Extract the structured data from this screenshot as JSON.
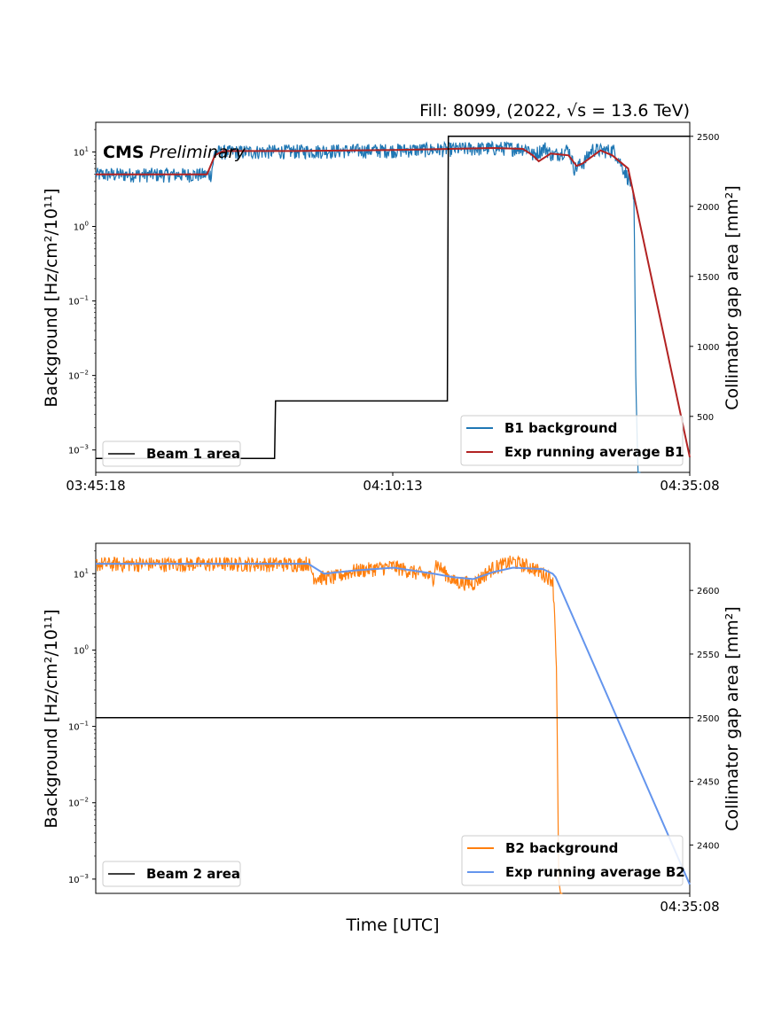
{
  "figure_title": "Fill: 8099, (2022, √s = 13.6 TeV)",
  "watermark": {
    "bold": "CMS",
    "italic": "Preliminary"
  },
  "colors": {
    "b1_background": "#1f77b4",
    "b1_avg": "#b22222",
    "b2_background": "#ff7f0e",
    "b2_avg": "#6495ed",
    "area": "#000000"
  },
  "chart_data": [
    {
      "type": "line",
      "panel": "top",
      "xlabel": "",
      "ylabel": "Background [Hz/cm²/10¹¹]",
      "ylabel_right": "Collimator gap area [mm²]",
      "y_scale": "log",
      "ylim": [
        0.0005,
        25
      ],
      "y_ticks": [
        {
          "v": 0.001,
          "m": "10",
          "e": "−3"
        },
        {
          "v": 0.01,
          "m": "10",
          "e": "−2"
        },
        {
          "v": 0.1,
          "m": "10",
          "e": "−1"
        },
        {
          "v": 1,
          "m": "10",
          "e": "0"
        },
        {
          "v": 10,
          "m": "10",
          "e": "1"
        }
      ],
      "y2lim": [
        100,
        2600
      ],
      "y2_ticks": [
        "500",
        "1000",
        "1500",
        "2000",
        "2500"
      ],
      "x_ticks": [
        "03:45:18",
        "04:10:13",
        "04:35:08"
      ],
      "xlim": [
        0,
        2990
      ],
      "series": [
        {
          "name": "B1 background",
          "kind": "noisy",
          "x": [
            0,
            580,
            600,
            1000,
            1500,
            2000,
            2180,
            2200,
            2260,
            2300,
            2380,
            2410,
            2460,
            2500,
            2540,
            2610,
            2690,
            2710,
            2718,
            2730,
            2742
          ],
          "y": [
            5,
            5,
            10,
            10.3,
            10.6,
            11.3,
            11.3,
            9,
            11.5,
            9,
            11,
            6,
            7.5,
            11,
            10.5,
            10.5,
            4,
            2,
            0.01,
            0.0004,
            0.0004
          ]
        },
        {
          "name": "Exp running average B1",
          "x": [
            0,
            560,
            600,
            640,
            1000,
            1500,
            2000,
            2150,
            2200,
            2230,
            2290,
            2380,
            2420,
            2450,
            2540,
            2600,
            2680,
            2990
          ],
          "y": [
            5,
            5,
            9,
            10.3,
            10.3,
            10.6,
            11.3,
            11,
            9,
            7.5,
            9.5,
            9,
            6.5,
            7,
            10.5,
            9,
            6,
            0.0008
          ]
        },
        {
          "name": "Beam 1 area",
          "axis": "right",
          "x": [
            0,
            900,
            905,
            1770,
            1775,
            2990
          ],
          "y": [
            200,
            200,
            610,
            610,
            2500,
            2500
          ]
        }
      ]
    },
    {
      "type": "line",
      "panel": "bottom",
      "xlabel": "Time [UTC]",
      "ylabel": "Background [Hz/cm²/10¹¹]",
      "ylabel_right": "Collimator gap area [mm²]",
      "y_scale": "log",
      "ylim": [
        0.00065,
        25
      ],
      "y_ticks": [
        {
          "v": 0.001,
          "m": "10",
          "e": "−3"
        },
        {
          "v": 0.01,
          "m": "10",
          "e": "−2"
        },
        {
          "v": 0.1,
          "m": "10",
          "e": "−1"
        },
        {
          "v": 1,
          "m": "10",
          "e": "0"
        },
        {
          "v": 10,
          "m": "10",
          "e": "1"
        }
      ],
      "y2lim": [
        2362,
        2637
      ],
      "y2_ticks": [
        "2400",
        "2450",
        "2500",
        "2550",
        "2600"
      ],
      "x_ticks": [
        "04:35:08"
      ],
      "xlim": [
        0,
        2990
      ],
      "series": [
        {
          "name": "B2 background",
          "kind": "noisy",
          "x": [
            0,
            1000,
            1070,
            1100,
            1200,
            1300,
            1500,
            1700,
            1705,
            1710,
            1800,
            1900,
            2000,
            2100,
            2200,
            2300,
            2310,
            2320,
            2330,
            2350
          ],
          "y": [
            13.5,
            13.5,
            14,
            9,
            9,
            11,
            12.5,
            9,
            11,
            14,
            8,
            7.5,
            12,
            14.5,
            12,
            8.5,
            3,
            0.5,
            0.001,
            0.0004
          ]
        },
        {
          "name": "Exp running average B2",
          "x": [
            0,
            1070,
            1150,
            1300,
            1500,
            1700,
            1800,
            1900,
            2000,
            2100,
            2250,
            2300,
            2315,
            2990
          ],
          "y": [
            13.5,
            13.5,
            10,
            11,
            12,
            10,
            9,
            8.5,
            10.5,
            12,
            11.5,
            10,
            9,
            0.00085
          ]
        },
        {
          "name": "Beam 2 area",
          "axis": "right",
          "x": [
            0,
            2990
          ],
          "y": [
            2500,
            2500
          ]
        }
      ]
    }
  ]
}
